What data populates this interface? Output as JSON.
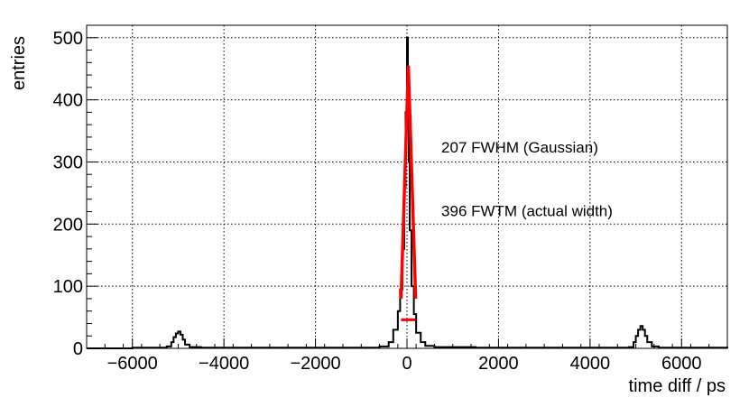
{
  "chart_data": {
    "type": "line",
    "title": "",
    "xlabel": "time diff / ps",
    "ylabel": "entries",
    "xlim": [
      -7000,
      7000
    ],
    "ylim": [
      0,
      520
    ],
    "grid": true,
    "x_ticks": [
      -6000,
      -4000,
      -2000,
      0,
      2000,
      4000,
      6000
    ],
    "x_tick_labels": [
      "−6000",
      "−4000",
      "−2000",
      "0",
      "2000",
      "4000",
      "6000"
    ],
    "y_ticks": [
      0,
      100,
      200,
      300,
      400,
      500
    ],
    "y_tick_labels": [
      "0",
      "100",
      "200",
      "300",
      "400",
      "500"
    ],
    "histogram": {
      "color": "#000000",
      "x": [
        -7000,
        -6000,
        -5500,
        -5250,
        -5150,
        -5100,
        -5050,
        -5000,
        -4950,
        -4900,
        -4850,
        -4750,
        -4500,
        -3000,
        -1500,
        -600,
        -400,
        -300,
        -200,
        -150,
        -100,
        -60,
        -30,
        0,
        20,
        40,
        60,
        100,
        150,
        200,
        300,
        400,
        600,
        1500,
        3000,
        4500,
        4850,
        4950,
        5000,
        5050,
        5100,
        5150,
        5200,
        5250,
        5350,
        5500,
        6000,
        7000
      ],
      "y": [
        0,
        1,
        1,
        3,
        10,
        18,
        24,
        27,
        22,
        14,
        6,
        2,
        1,
        1,
        1,
        3,
        10,
        30,
        60,
        95,
        160,
        260,
        380,
        500,
        420,
        300,
        190,
        100,
        55,
        25,
        10,
        4,
        2,
        1,
        1,
        1,
        2,
        10,
        20,
        30,
        36,
        30,
        20,
        10,
        3,
        1,
        1,
        0
      ]
    },
    "fit": {
      "color": "#ff0000",
      "peak": [
        30,
        455
      ],
      "left_base": [
        -130,
        80
      ],
      "right_base": [
        190,
        80
      ],
      "fwhm_bar": {
        "x": [
          -130,
          190
        ],
        "y": 46
      }
    },
    "annotations": [
      {
        "text": "207 FWHM (Gaussian)",
        "x": 750,
        "y": 315
      },
      {
        "text": "396 FWTM (actual width)",
        "x": 750,
        "y": 213
      }
    ]
  }
}
